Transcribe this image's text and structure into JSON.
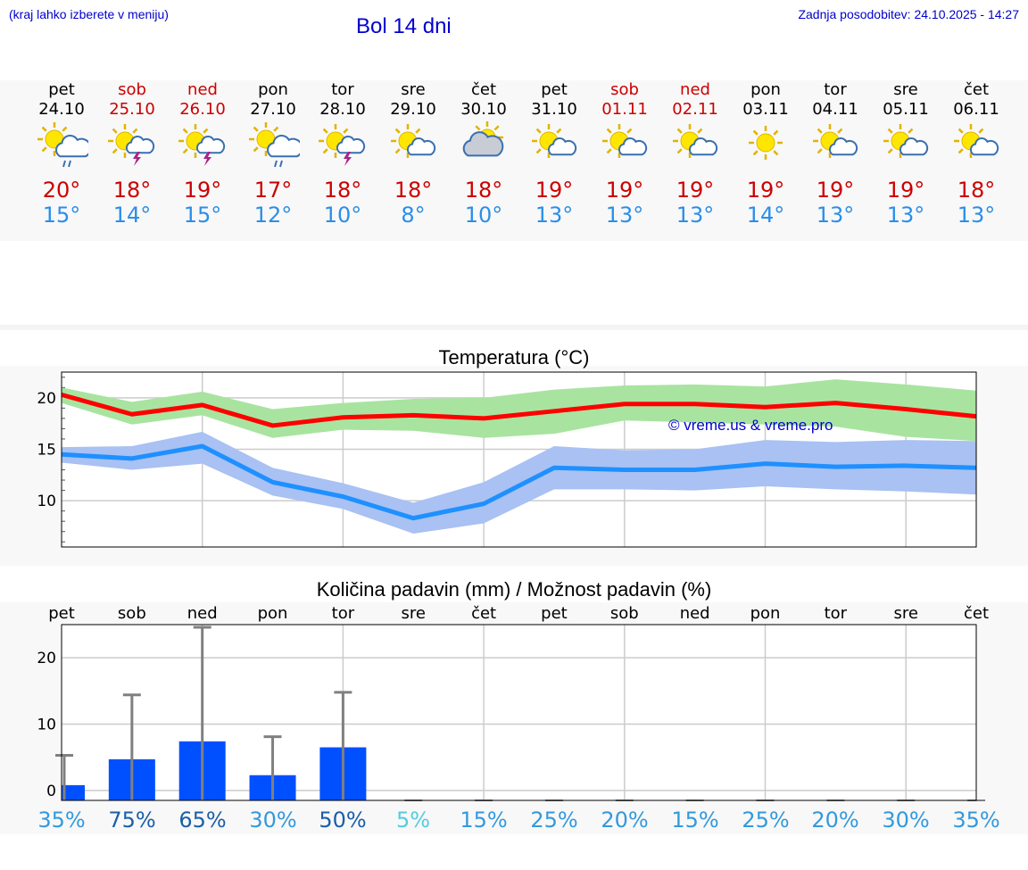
{
  "header": {
    "left_note": "(kraj lahko izberete v meniju)",
    "title": "Bol 14 dni",
    "updated": "Zadnja posodobitev: 24.10.2025 - 14:27"
  },
  "colors": {
    "header_text": "#0000cc",
    "weekend": "#cc0000",
    "max_temp": "#cc0000",
    "min_temp": "#2a8ee8",
    "max_band": "#a8e4a0",
    "min_band": "#a9c1f3",
    "max_line": "#ff0000",
    "min_line": "#1e90ff",
    "precip_bar": "#0050ff",
    "error_bar": "#808080",
    "chance_high": "#1a5fa8",
    "chance_mid": "#3399dd",
    "chance_low": "#55ccdd"
  },
  "days": [
    {
      "name": "pet",
      "date": "24.10",
      "weekend": false,
      "icon": "partly-sunny-rain-icon",
      "max": "20°",
      "min": "15°"
    },
    {
      "name": "sob",
      "date": "25.10",
      "weekend": true,
      "icon": "sun-storm-icon",
      "max": "18°",
      "min": "14°"
    },
    {
      "name": "ned",
      "date": "26.10",
      "weekend": true,
      "icon": "sun-storm-icon",
      "max": "19°",
      "min": "15°"
    },
    {
      "name": "pon",
      "date": "27.10",
      "weekend": false,
      "icon": "partly-sunny-rain-icon",
      "max": "17°",
      "min": "12°"
    },
    {
      "name": "tor",
      "date": "28.10",
      "weekend": false,
      "icon": "sun-storm-icon",
      "max": "18°",
      "min": "10°"
    },
    {
      "name": "sre",
      "date": "29.10",
      "weekend": false,
      "icon": "sun-small-cloud-icon",
      "max": "18°",
      "min": "8°"
    },
    {
      "name": "čet",
      "date": "30.10",
      "weekend": false,
      "icon": "cloudy-sun-icon",
      "max": "18°",
      "min": "10°"
    },
    {
      "name": "pet",
      "date": "31.10",
      "weekend": false,
      "icon": "sun-small-cloud-icon",
      "max": "19°",
      "min": "13°"
    },
    {
      "name": "sob",
      "date": "01.11",
      "weekend": true,
      "icon": "sun-small-cloud-icon",
      "max": "19°",
      "min": "13°"
    },
    {
      "name": "ned",
      "date": "02.11",
      "weekend": true,
      "icon": "sun-small-cloud-icon",
      "max": "19°",
      "min": "13°"
    },
    {
      "name": "pon",
      "date": "03.11",
      "weekend": false,
      "icon": "sun-icon",
      "max": "19°",
      "min": "14°"
    },
    {
      "name": "tor",
      "date": "04.11",
      "weekend": false,
      "icon": "sun-small-cloud-icon",
      "max": "19°",
      "min": "13°"
    },
    {
      "name": "sre",
      "date": "05.11",
      "weekend": false,
      "icon": "sun-small-cloud-icon",
      "max": "19°",
      "min": "13°"
    },
    {
      "name": "čet",
      "date": "06.11",
      "weekend": false,
      "icon": "sun-small-cloud-icon",
      "max": "18°",
      "min": "13°"
    }
  ],
  "watermark": "© vreme.us & vreme.pro",
  "chart_data": [
    {
      "type": "line",
      "title": "Temperatura (°C)",
      "categories": [
        "24.10",
        "25.10",
        "26.10",
        "27.10",
        "28.10",
        "29.10",
        "30.10",
        "31.10",
        "01.11",
        "02.11",
        "03.11",
        "04.11",
        "05.11",
        "06.11"
      ],
      "ylim": [
        5.5,
        22.5
      ],
      "yticks": [
        10,
        15,
        20
      ],
      "grid": true,
      "series": [
        {
          "role": "max",
          "values": [
            20.3,
            18.4,
            19.3,
            17.3,
            18.1,
            18.3,
            18.0,
            18.7,
            19.4,
            19.4,
            19.1,
            19.5,
            18.9,
            18.2
          ],
          "band_high": [
            21.0,
            19.6,
            20.6,
            18.9,
            19.5,
            19.9,
            20.0,
            20.8,
            21.2,
            21.3,
            21.1,
            21.8,
            21.3,
            20.7
          ],
          "band_low": [
            19.5,
            17.4,
            18.3,
            16.1,
            16.9,
            16.8,
            16.1,
            16.5,
            17.8,
            17.6,
            17.4,
            17.2,
            16.2,
            15.8
          ]
        },
        {
          "role": "min",
          "values": [
            14.5,
            14.1,
            15.3,
            11.8,
            10.4,
            8.3,
            9.7,
            13.2,
            13.0,
            13.0,
            13.6,
            13.3,
            13.4,
            13.2
          ],
          "band_high": [
            15.2,
            15.3,
            16.7,
            13.2,
            11.7,
            9.8,
            11.8,
            15.3,
            14.9,
            15.0,
            15.9,
            15.7,
            15.9,
            15.8
          ],
          "band_low": [
            13.7,
            13.0,
            13.6,
            10.5,
            9.2,
            6.8,
            7.8,
            11.1,
            11.1,
            11.0,
            11.4,
            11.1,
            10.9,
            10.6
          ]
        }
      ]
    },
    {
      "type": "bar",
      "title": "Količina padavin (mm) / Možnost padavin (%)",
      "categories": [
        "pet",
        "sob",
        "ned",
        "pon",
        "tor",
        "sre",
        "čet",
        "pet",
        "sob",
        "ned",
        "pon",
        "tor",
        "sre",
        "čet"
      ],
      "ylim": [
        -1.5,
        25
      ],
      "yticks": [
        0,
        10,
        20
      ],
      "grid": true,
      "values": [
        0.8,
        4.7,
        7.4,
        2.3,
        6.5,
        0,
        0,
        0,
        0,
        0,
        0,
        0,
        0,
        0
      ],
      "error_high": [
        5.3,
        14.4,
        24.6,
        8.1,
        14.8,
        0,
        0,
        0,
        0,
        0,
        0,
        0,
        0,
        0
      ],
      "chance": [
        "35%",
        "75%",
        "65%",
        "30%",
        "50%",
        "5%",
        "15%",
        "25%",
        "20%",
        "15%",
        "25%",
        "20%",
        "30%",
        "35%"
      ]
    }
  ]
}
